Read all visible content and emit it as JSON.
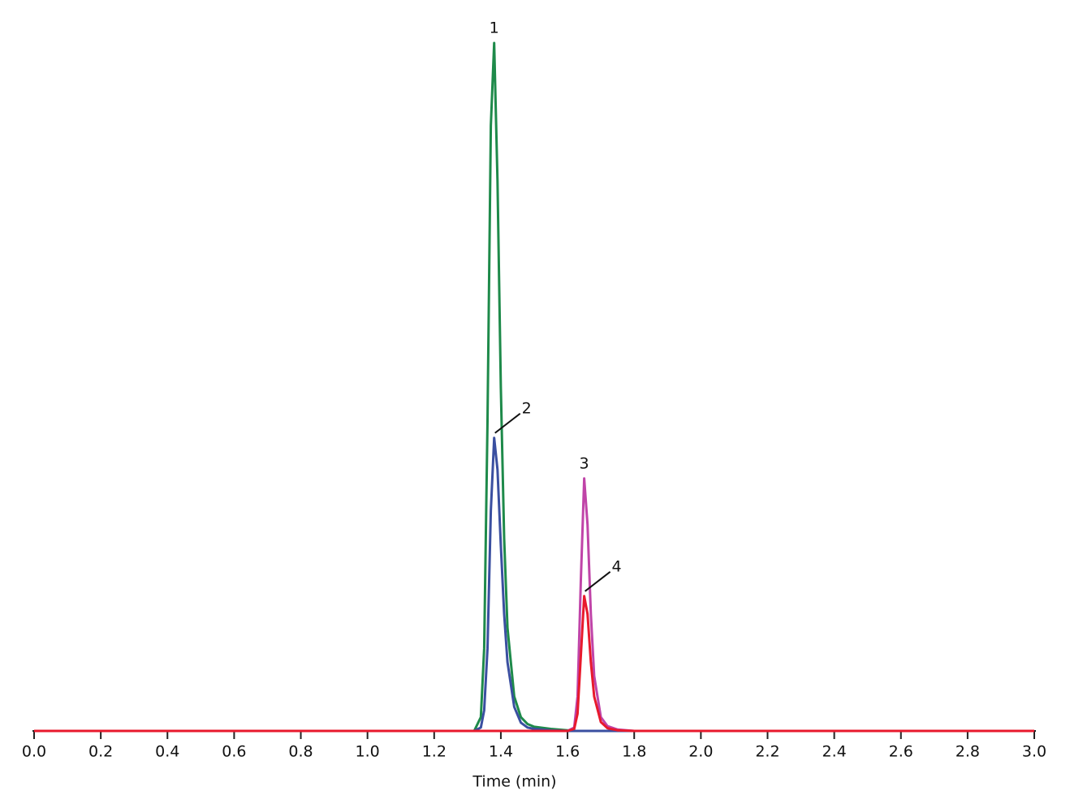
{
  "chart_data": {
    "type": "line",
    "xlabel": "Time (min)",
    "x": [
      0,
      1.3,
      1.32,
      1.34,
      1.35,
      1.36,
      1.37,
      1.38,
      1.39,
      1.4,
      1.41,
      1.42,
      1.44,
      1.46,
      1.48,
      1.5,
      1.55,
      1.6,
      1.62,
      1.63,
      1.64,
      1.65,
      1.66,
      1.67,
      1.68,
      1.7,
      1.72,
      1.75,
      1.8,
      2.0,
      3.0
    ],
    "series": [
      {
        "color": "#1e8a4a",
        "values": [
          0,
          0,
          0,
          2,
          12,
          45,
          88,
          100,
          80,
          50,
          28,
          15,
          5,
          2,
          1,
          0.6,
          0.3,
          0.1,
          0,
          0,
          0,
          0,
          0,
          0,
          0,
          0,
          0,
          0,
          0,
          0,
          0
        ]
      },
      {
        "color": "#3a4fa0",
        "values": [
          0,
          0,
          0,
          0.5,
          3,
          12,
          32,
          42.6,
          38,
          27,
          17,
          10,
          3.5,
          1.2,
          0.5,
          0.3,
          0.1,
          0,
          0,
          0,
          0,
          0,
          0,
          0,
          0,
          0,
          0,
          0,
          0,
          0,
          0
        ]
      },
      {
        "color": "#c044a8",
        "values": [
          0,
          0,
          0,
          0,
          0,
          0,
          0,
          0,
          0,
          0,
          0,
          0,
          0,
          0,
          0,
          0,
          0,
          0,
          0.5,
          5,
          22,
          36.7,
          30,
          17,
          8,
          2,
          0.7,
          0.2,
          0,
          0,
          0
        ]
      },
      {
        "color": "#e8192c",
        "values": [
          0,
          0,
          0,
          0,
          0,
          0,
          0,
          0,
          0,
          0,
          0,
          0,
          0,
          0,
          0,
          0,
          0,
          0,
          0.3,
          2.5,
          11,
          19.6,
          17,
          10,
          5,
          1.3,
          0.4,
          0.1,
          0,
          0,
          0
        ]
      }
    ],
    "annotations": [
      "1",
      "2",
      "3",
      "4"
    ],
    "xlim": [
      0,
      3
    ],
    "ylim": [
      0,
      100
    ],
    "xticks": [
      {
        "value": 0,
        "label": "0.0"
      },
      0.2,
      0.4,
      0.6,
      0.8,
      {
        "value": 1,
        "label": "1.0"
      },
      1.2,
      1.4,
      1.6,
      1.8,
      {
        "value": 2,
        "label": "2.0"
      },
      2.2,
      2.4,
      2.6,
      2.8,
      {
        "value": 3,
        "label": "3.0"
      }
    ]
  }
}
